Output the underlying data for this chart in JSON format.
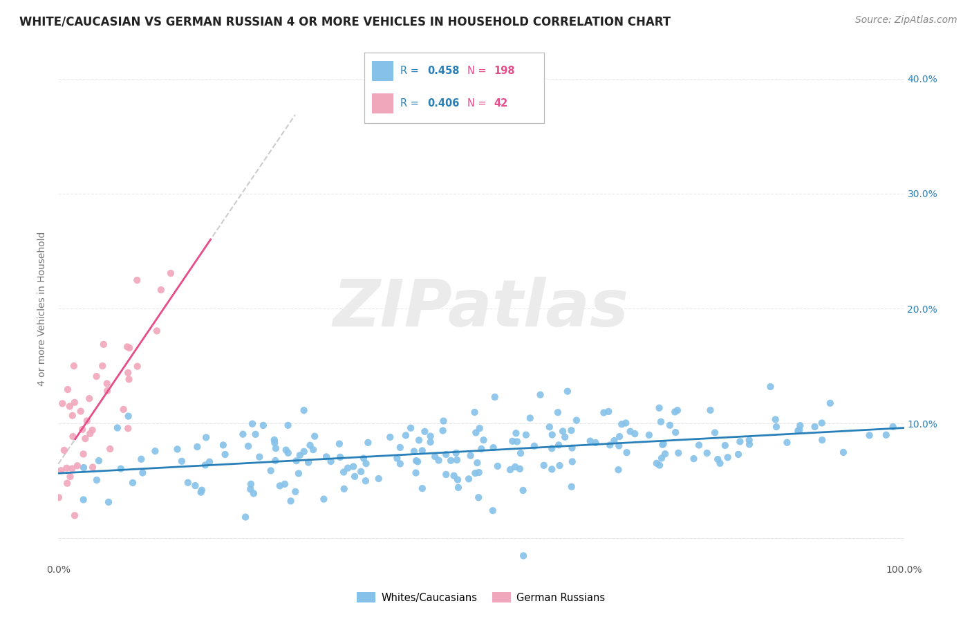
{
  "title": "WHITE/CAUCASIAN VS GERMAN RUSSIAN 4 OR MORE VEHICLES IN HOUSEHOLD CORRELATION CHART",
  "source": "Source: ZipAtlas.com",
  "ylabel": "4 or more Vehicles in Household",
  "watermark": "ZIPatlas",
  "blue_R": 0.458,
  "blue_N": 198,
  "pink_R": 0.406,
  "pink_N": 42,
  "blue_color": "#85c1e9",
  "pink_color": "#f1a7bb",
  "blue_line_color": "#2980b9",
  "pink_line_color": "#e74c8b",
  "legend_blue_label": "Whites/Caucasians",
  "legend_pink_label": "German Russians",
  "xlim": [
    0,
    100
  ],
  "ylim": [
    -2,
    42
  ],
  "background_color": "#ffffff",
  "grid_color": "#e8e8e8",
  "title_fontsize": 12,
  "source_fontsize": 10,
  "label_fontsize": 10,
  "tick_fontsize": 10,
  "watermark_fontsize": 68,
  "watermark_color": "#ebebeb"
}
